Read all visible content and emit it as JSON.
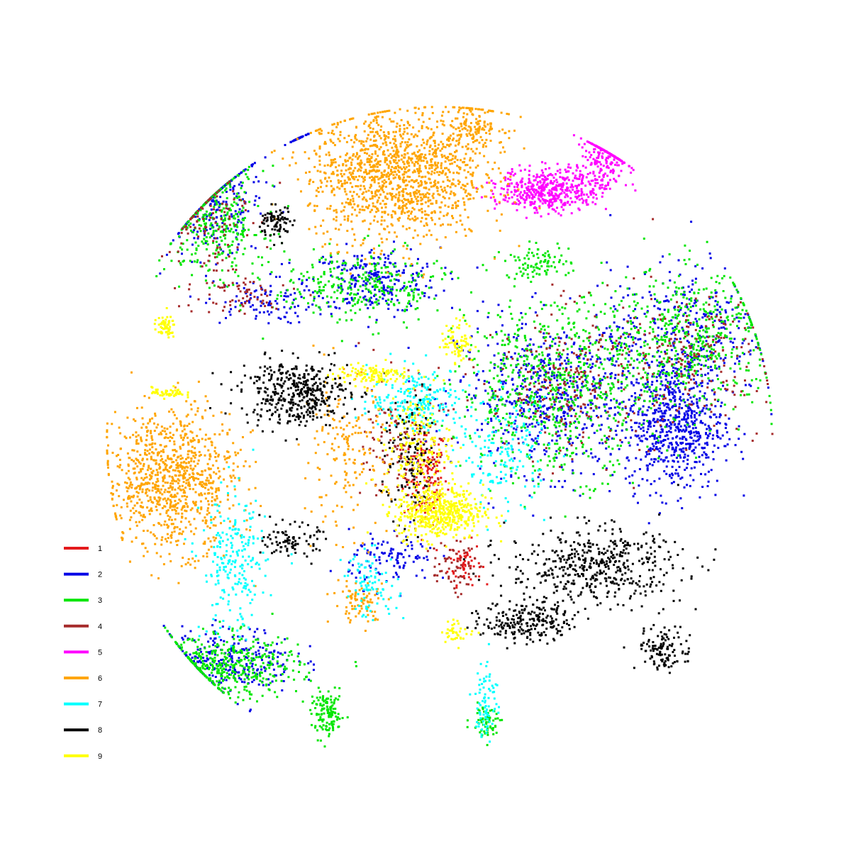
{
  "chart_data": {
    "type": "scatter",
    "title": "",
    "xlabel": "",
    "ylabel": "",
    "xlim": [
      -100,
      100
    ],
    "ylim": [
      -100,
      100
    ],
    "axes": "none",
    "grid": false,
    "legend_placement": "bottom-left",
    "point_count_note_hidden": true,
    "series": [
      {
        "name": "1",
        "color": "#e41a1c",
        "clusters": [
          {
            "cx": -4,
            "cy": -10,
            "sx": 4,
            "sy": 9,
            "n": 150
          },
          {
            "cx": 7,
            "cy": -34,
            "sx": 3,
            "sy": 4,
            "n": 60
          }
        ]
      },
      {
        "name": "2",
        "color": "#0000e6",
        "clusters": [
          {
            "cx": -62,
            "cy": 65,
            "sx": 9,
            "sy": 10,
            "n": 250
          },
          {
            "cx": -18,
            "cy": 44,
            "sx": 12,
            "sy": 6,
            "n": 260
          },
          {
            "cx": -50,
            "cy": 38,
            "sx": 10,
            "sy": 4,
            "n": 90
          },
          {
            "cx": 32,
            "cy": 12,
            "sx": 18,
            "sy": 14,
            "n": 650
          },
          {
            "cx": 65,
            "cy": 4,
            "sx": 9,
            "sy": 12,
            "n": 650
          },
          {
            "cx": 68,
            "cy": 30,
            "sx": 14,
            "sy": 12,
            "n": 320
          },
          {
            "cx": -58,
            "cy": -61,
            "sx": 12,
            "sy": 6,
            "n": 280
          },
          {
            "cx": -13,
            "cy": -33,
            "sx": 8,
            "sy": 5,
            "n": 110
          },
          {
            "cx": -41,
            "cy": 88,
            "sx": 3,
            "sy": 2,
            "n": 40
          }
        ]
      },
      {
        "name": "3",
        "color": "#00e600",
        "clusters": [
          {
            "cx": -62,
            "cy": 60,
            "sx": 9,
            "sy": 10,
            "n": 320
          },
          {
            "cx": -22,
            "cy": 42,
            "sx": 16,
            "sy": 7,
            "n": 300
          },
          {
            "cx": 32,
            "cy": 14,
            "sx": 18,
            "sy": 16,
            "n": 700
          },
          {
            "cx": 70,
            "cy": 28,
            "sx": 16,
            "sy": 13,
            "n": 520
          },
          {
            "cx": -58,
            "cy": -63,
            "sx": 13,
            "sy": 6,
            "n": 420
          },
          {
            "cx": -31,
            "cy": -76,
            "sx": 3,
            "sy": 4,
            "n": 130
          },
          {
            "cx": 27,
            "cy": 49,
            "sx": 6,
            "sy": 3,
            "n": 90
          },
          {
            "cx": 13,
            "cy": -78,
            "sx": 3,
            "sy": 3,
            "n": 60
          }
        ]
      },
      {
        "name": "4",
        "color": "#a52a2a",
        "clusters": [
          {
            "cx": -64,
            "cy": 62,
            "sx": 8,
            "sy": 10,
            "n": 100
          },
          {
            "cx": -57,
            "cy": 40,
            "sx": 11,
            "sy": 4,
            "n": 70
          },
          {
            "cx": -10,
            "cy": -2,
            "sx": 7,
            "sy": 12,
            "n": 120
          },
          {
            "cx": 36,
            "cy": 16,
            "sx": 16,
            "sy": 14,
            "n": 240
          },
          {
            "cx": 70,
            "cy": 22,
            "sx": 15,
            "sy": 12,
            "n": 180
          },
          {
            "cx": 4,
            "cy": -35,
            "sx": 4,
            "sy": 5,
            "n": 60
          }
        ]
      },
      {
        "name": "5",
        "color": "#ff00ff",
        "clusters": [
          {
            "cx": 30,
            "cy": 69,
            "sx": 9,
            "sy": 4,
            "n": 460
          },
          {
            "cx": 45,
            "cy": 76,
            "sx": 4,
            "sy": 7,
            "n": 180
          },
          {
            "cx": 51,
            "cy": 85,
            "sx": 5,
            "sy": 3,
            "n": 70
          }
        ]
      },
      {
        "name": "6",
        "color": "#ffa500",
        "clusters": [
          {
            "cx": -12,
            "cy": 73,
            "sx": 16,
            "sy": 12,
            "n": 1300
          },
          {
            "cx": 9,
            "cy": 87,
            "sx": 6,
            "sy": 5,
            "n": 180
          },
          {
            "cx": -74,
            "cy": -11,
            "sx": 12,
            "sy": 13,
            "n": 950
          },
          {
            "cx": -26,
            "cy": -4,
            "sx": 8,
            "sy": 14,
            "n": 180
          },
          {
            "cx": -22,
            "cy": -45,
            "sx": 5,
            "sy": 4,
            "n": 80
          }
        ]
      },
      {
        "name": "7",
        "color": "#00ffff",
        "clusters": [
          {
            "cx": -6,
            "cy": 11,
            "sx": 9,
            "sy": 6,
            "n": 220
          },
          {
            "cx": 18,
            "cy": -4,
            "sx": 8,
            "sy": 10,
            "n": 160
          },
          {
            "cx": -57,
            "cy": -35,
            "sx": 6,
            "sy": 13,
            "n": 230
          },
          {
            "cx": -19,
            "cy": -40,
            "sx": 5,
            "sy": 6,
            "n": 90
          },
          {
            "cx": 13,
            "cy": -72,
            "sx": 2,
            "sy": 8,
            "n": 80
          }
        ]
      },
      {
        "name": "8",
        "color": "#000000",
        "clusters": [
          {
            "cx": -40,
            "cy": 13,
            "sx": 10,
            "sy": 6,
            "n": 420
          },
          {
            "cx": -45,
            "cy": 60,
            "sx": 3,
            "sy": 3,
            "n": 80
          },
          {
            "cx": -41,
            "cy": -28,
            "sx": 5,
            "sy": 3,
            "n": 90
          },
          {
            "cx": 43,
            "cy": -35,
            "sx": 16,
            "sy": 7,
            "n": 480
          },
          {
            "cx": 24,
            "cy": -50,
            "sx": 8,
            "sy": 4,
            "n": 230
          },
          {
            "cx": 62,
            "cy": -58,
            "sx": 5,
            "sy": 4,
            "n": 120
          },
          {
            "cx": -8,
            "cy": -6,
            "sx": 5,
            "sy": 12,
            "n": 130
          }
        ]
      },
      {
        "name": "9",
        "color": "#ffff00",
        "clusters": [
          {
            "cx": 0,
            "cy": -20,
            "sx": 8,
            "sy": 5,
            "n": 520
          },
          {
            "cx": -6,
            "cy": -2,
            "sx": 6,
            "sy": 9,
            "n": 180
          },
          {
            "cx": -19,
            "cy": 18,
            "sx": 7,
            "sy": 2,
            "n": 120
          },
          {
            "cx": -76,
            "cy": 31,
            "sx": 2,
            "sy": 2,
            "n": 60
          },
          {
            "cx": -75,
            "cy": 13,
            "sx": 3,
            "sy": 1,
            "n": 50
          },
          {
            "cx": 5,
            "cy": 27,
            "sx": 3,
            "sy": 4,
            "n": 80
          },
          {
            "cx": 5,
            "cy": -53,
            "sx": 3,
            "sy": 2,
            "n": 40
          }
        ]
      }
    ]
  }
}
